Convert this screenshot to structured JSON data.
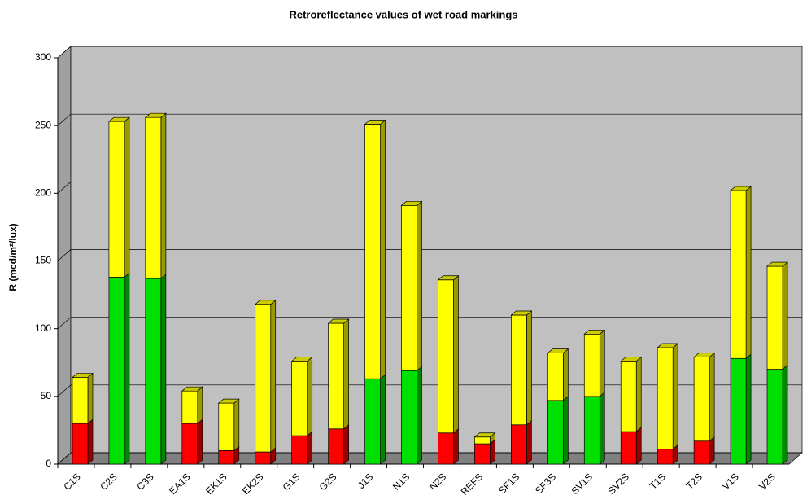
{
  "chart_data": {
    "type": "bar",
    "stacked": true,
    "title": "Retroreflectance values of wet road markings",
    "y_label": "R (mcd/m²/lux)",
    "categories": [
      "C1S",
      "C2S",
      "C3S",
      "EA1S",
      "EK1S",
      "EK2S",
      "G1S",
      "G2S",
      "J1S",
      "N1S",
      "N2S",
      "REFS",
      "SF1S",
      "SF3S",
      "SV1S",
      "SV2S",
      "T1S",
      "T2S",
      "V1S",
      "V2S"
    ],
    "series": [
      {
        "color": "#ff0000",
        "values": [
          30,
          null,
          null,
          30,
          10,
          9,
          21,
          26,
          null,
          null,
          23,
          15,
          29,
          null,
          null,
          24,
          11,
          17,
          null,
          null
        ]
      },
      {
        "color": "#00e000",
        "values": [
          null,
          138,
          137,
          null,
          null,
          null,
          null,
          null,
          63,
          69,
          null,
          null,
          null,
          47,
          50,
          null,
          null,
          null,
          78,
          70
        ]
      },
      {
        "color": "#ffff00",
        "values": [
          34,
          115,
          119,
          24,
          35,
          109,
          55,
          78,
          188,
          122,
          113,
          5,
          81,
          35,
          46,
          52,
          75,
          62,
          124,
          76
        ]
      }
    ],
    "ylim": [
      0,
      300
    ],
    "yticks": [
      0,
      50,
      100,
      150,
      200,
      250,
      300
    ],
    "grid": true
  }
}
